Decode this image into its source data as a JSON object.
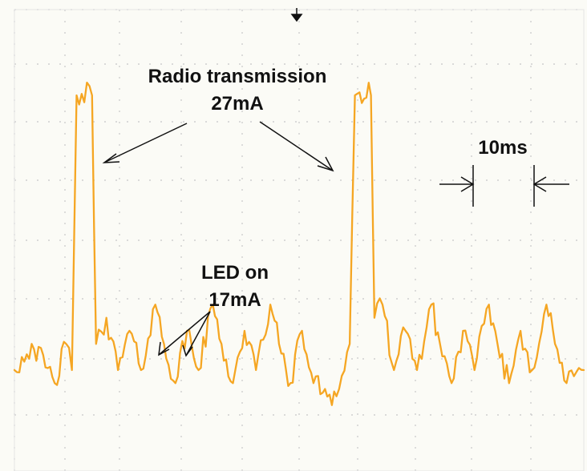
{
  "chart_data": {
    "type": "line",
    "title": "",
    "xlabel": "",
    "ylabel": "",
    "grid": true,
    "trace_color": "#f5a623",
    "annotations": {
      "radio_line1": "Radio transmission",
      "radio_line2": "27mA",
      "led_line1": "LED on",
      "led_line2": "17mA",
      "time_scale": "10ms"
    },
    "series": [
      {
        "values_ms_mA": [
          [
            0,
            6
          ],
          [
            3,
            8
          ],
          [
            7,
            5
          ],
          [
            9,
            8
          ],
          [
            10,
            6
          ],
          [
            10.8,
            27
          ],
          [
            13.5,
            27
          ],
          [
            14.2,
            8
          ],
          [
            16,
            10
          ],
          [
            18,
            6
          ],
          [
            20,
            9
          ],
          [
            22,
            6
          ],
          [
            24.5,
            11
          ],
          [
            26,
            8
          ],
          [
            28,
            5
          ],
          [
            30,
            9
          ],
          [
            32,
            6
          ],
          [
            34.5,
            11
          ],
          [
            36,
            8
          ],
          [
            38,
            5
          ],
          [
            40,
            9
          ],
          [
            42,
            6
          ],
          [
            44.5,
            11
          ],
          [
            46,
            8
          ],
          [
            48,
            5
          ],
          [
            50,
            9
          ],
          [
            52,
            5
          ],
          [
            56,
            4
          ],
          [
            58.3,
            8
          ],
          [
            59.2,
            27
          ],
          [
            62,
            27
          ],
          [
            62.6,
            10
          ],
          [
            64,
            11
          ],
          [
            66,
            6
          ],
          [
            68,
            9
          ],
          [
            70,
            6
          ],
          [
            72.5,
            11
          ],
          [
            74,
            8
          ],
          [
            76,
            5
          ],
          [
            78,
            9
          ],
          [
            80,
            6
          ],
          [
            82.5,
            11
          ],
          [
            84,
            8
          ],
          [
            86,
            5
          ],
          [
            88,
            9
          ],
          [
            90,
            6
          ],
          [
            92.5,
            11
          ],
          [
            94,
            8
          ],
          [
            96,
            5
          ],
          [
            99,
            6
          ]
        ]
      }
    ]
  }
}
